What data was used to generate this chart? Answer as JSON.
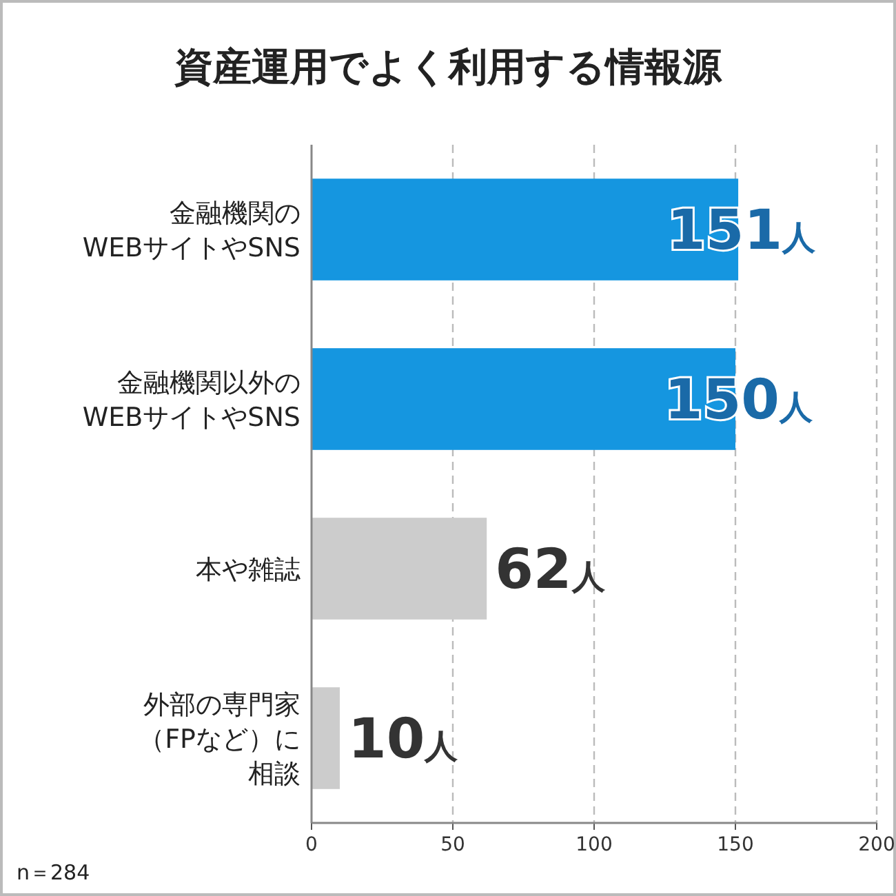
{
  "chart_data": {
    "type": "bar",
    "orientation": "horizontal",
    "title": "資産運用でよく利用する情報源",
    "categories": [
      "金融機関の\nWEBサイトやSNS",
      "金融機関以外の\nWEBサイトやSNS",
      "本や雑誌",
      "外部の専門家（FPなど）に相談"
    ],
    "values": [
      151,
      150,
      62,
      10
    ],
    "colors": [
      "#1596e0",
      "#1596e0",
      "#cccccc",
      "#cccccc"
    ],
    "value_labels": [
      "151人",
      "150人",
      "62人",
      "10人"
    ],
    "xlim": [
      0,
      200
    ],
    "xticks": [
      0,
      50,
      100,
      150,
      200
    ],
    "grid": "x",
    "annotations": [
      "n＝284"
    ]
  }
}
